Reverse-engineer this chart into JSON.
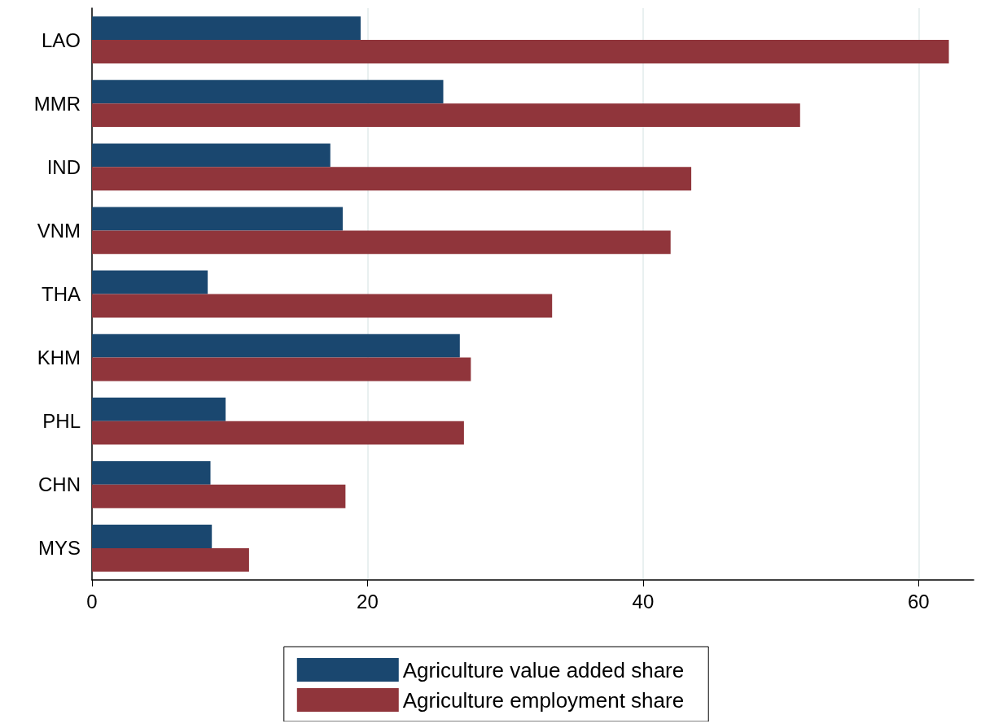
{
  "chart_data": {
    "type": "bar",
    "orientation": "horizontal",
    "categories": [
      "LAO",
      "MMR",
      "IND",
      "VNM",
      "THA",
      "KHM",
      "PHL",
      "CHN",
      "MYS"
    ],
    "series": [
      {
        "name": "Agriculture value added share",
        "color": "#1a476f",
        "values": [
          19.5,
          25.5,
          17.3,
          18.2,
          8.4,
          26.7,
          9.7,
          8.6,
          8.7
        ]
      },
      {
        "name": "Agriculture employment share",
        "color": "#90353b",
        "values": [
          62.2,
          51.4,
          43.5,
          42.0,
          33.4,
          27.5,
          27.0,
          18.4,
          11.4
        ]
      }
    ],
    "xlim": [
      0,
      64
    ],
    "xticks": [
      0,
      20,
      40,
      60
    ],
    "grid": "x",
    "legend": "bottom"
  }
}
